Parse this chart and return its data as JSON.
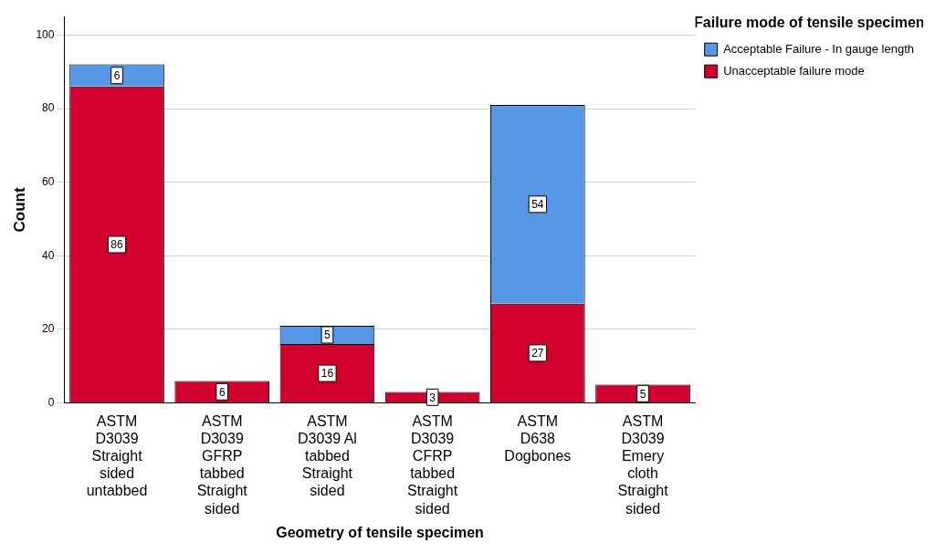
{
  "chart_data": {
    "type": "bar",
    "xlabel": "Geometry of tensile specimen",
    "ylabel": "Count",
    "legend_title": "Failure mode of tensile specimen",
    "categories": [
      "ASTM D3039 Straight sided untabbed",
      "ASTM D3039 GFRP tabbed Straight sided",
      "ASTM D3039 Al tabbed Straight sided",
      "ASTM D3039 CFRP tabbed Straight sided",
      "ASTM D638 Dogbones",
      "ASTM D3039 Emery cloth Straight sided"
    ],
    "series": [
      {
        "name": "Unacceptable failure mode",
        "color": "#d1002c",
        "values": [
          86,
          6,
          16,
          3,
          27,
          5
        ]
      },
      {
        "name": "Acceptable Failure - In gauge length",
        "color": "#5597e4",
        "values": [
          6,
          null,
          5,
          null,
          54,
          null
        ]
      }
    ],
    "stacked": true,
    "ylim": [
      0,
      105
    ],
    "yticks": [
      0,
      20,
      40,
      60,
      80,
      100
    ],
    "grid": "y",
    "legend": "top right",
    "data_labels": true
  }
}
